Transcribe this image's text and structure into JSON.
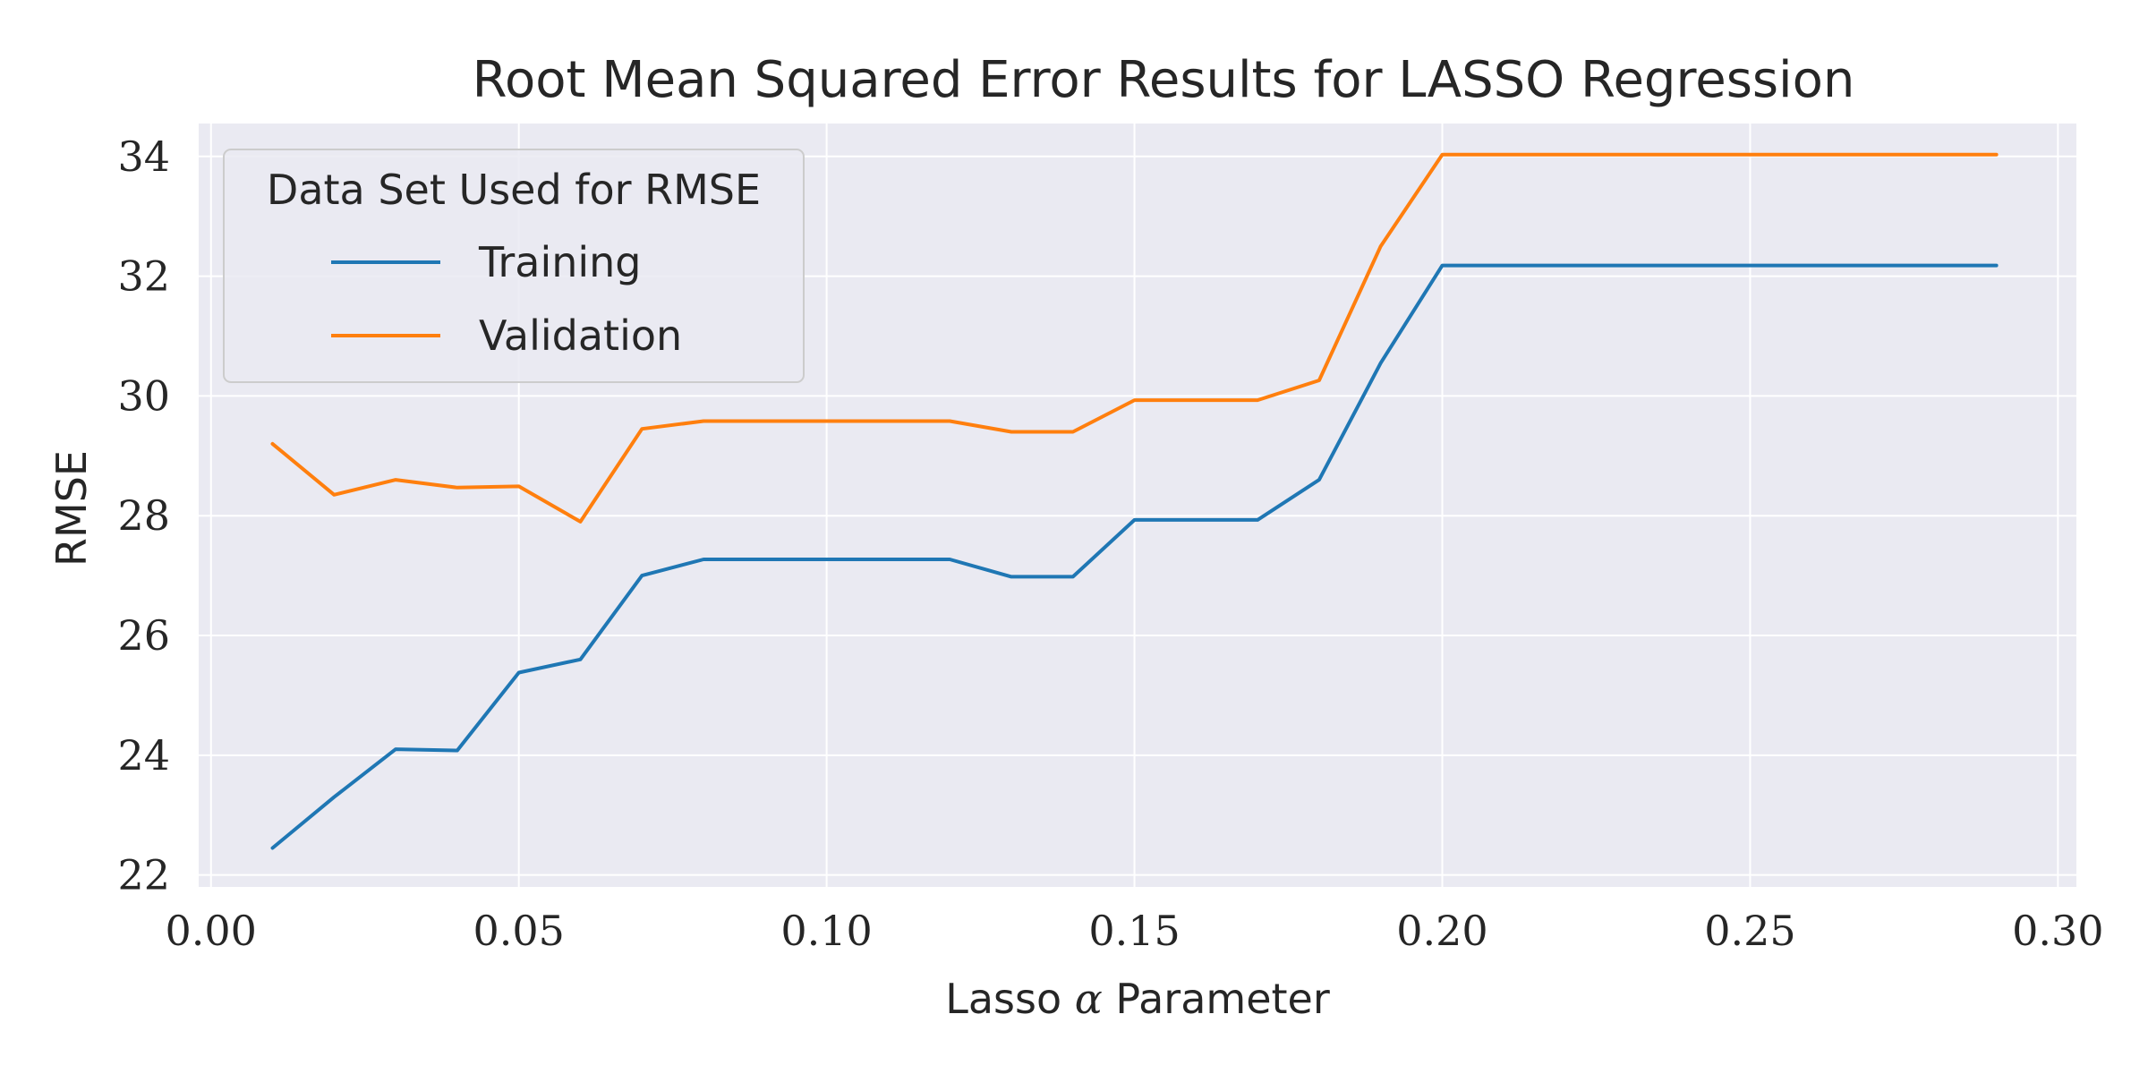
{
  "chart_data": {
    "type": "line",
    "title": "Root Mean Squared Error Results for LASSO Regression",
    "xlabel_prefix": "Lasso ",
    "xlabel_symbol": "α",
    "xlabel_suffix": " Parameter",
    "ylabel": "RMSE",
    "xlim": [
      -0.002,
      0.303
    ],
    "ylim": [
      21.8,
      34.55
    ],
    "xticks": [
      0.0,
      0.05,
      0.1,
      0.15,
      0.2,
      0.25,
      0.3
    ],
    "xtick_labels": [
      "0.00",
      "0.05",
      "0.10",
      "0.15",
      "0.20",
      "0.25",
      "0.30"
    ],
    "yticks": [
      22,
      24,
      26,
      28,
      30,
      32,
      34
    ],
    "ytick_labels": [
      "22",
      "24",
      "26",
      "28",
      "30",
      "32",
      "34"
    ],
    "grid": true,
    "background_color": "#eaeaf2",
    "legend": {
      "title": "Data Set Used for RMSE",
      "placement": "top-left"
    },
    "x": [
      0.01,
      0.02,
      0.03,
      0.04,
      0.05,
      0.06,
      0.07,
      0.08,
      0.09,
      0.1,
      0.11,
      0.12,
      0.13,
      0.14,
      0.15,
      0.16,
      0.17,
      0.18,
      0.19,
      0.2,
      0.21,
      0.22,
      0.23,
      0.24,
      0.25,
      0.26,
      0.27,
      0.28,
      0.29
    ],
    "series": [
      {
        "name": "Training",
        "color": "#1f77b4",
        "values": [
          22.45,
          23.3,
          24.1,
          24.08,
          25.38,
          25.6,
          27.0,
          27.27,
          27.27,
          27.27,
          27.27,
          27.27,
          26.98,
          26.98,
          27.93,
          27.93,
          27.93,
          28.6,
          30.55,
          32.18,
          32.18,
          32.18,
          32.18,
          32.18,
          32.18,
          32.18,
          32.18,
          32.18,
          32.18
        ]
      },
      {
        "name": "Validation",
        "color": "#ff7f0e",
        "values": [
          29.2,
          28.35,
          28.6,
          28.47,
          28.49,
          27.9,
          29.45,
          29.58,
          29.58,
          29.58,
          29.58,
          29.58,
          29.4,
          29.4,
          29.93,
          29.93,
          29.93,
          30.26,
          32.5,
          34.03,
          34.03,
          34.03,
          34.03,
          34.03,
          34.03,
          34.03,
          34.03,
          34.03,
          34.03
        ]
      }
    ]
  }
}
